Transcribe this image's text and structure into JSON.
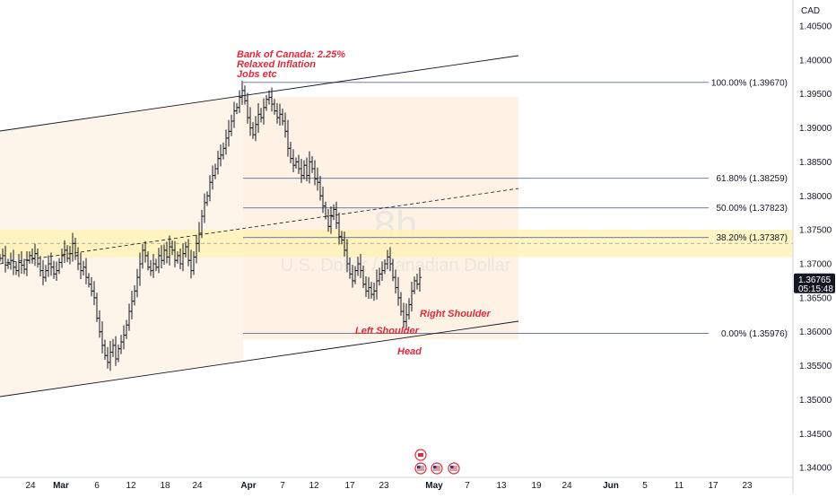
{
  "chart_data": {
    "type": "candlestick",
    "currency": "CAD",
    "watermark_title": "8h",
    "watermark_subtitle": "U.S. Dollar / Canadian Dollar",
    "y_ticks": [
      "1.40500",
      "1.40000",
      "1.39500",
      "1.39000",
      "1.38500",
      "1.38000",
      "1.37500",
      "1.37000",
      "1.36500",
      "1.36000",
      "1.35500",
      "1.35000",
      "1.34500",
      "1.34000"
    ],
    "x_ticks": [
      "24",
      "Mar",
      "6",
      "12",
      "18",
      "24",
      "Apr",
      "7",
      "12",
      "17",
      "23",
      "May",
      "7",
      "13",
      "19",
      "24",
      "Jun",
      "5",
      "11",
      "17",
      "23"
    ],
    "bold_x_ticks": [
      "Mar",
      "Apr",
      "May",
      "Jun"
    ],
    "ylim": [
      1.3395,
      1.4075
    ],
    "last_price": "1.36765",
    "countdown": "05:15:48",
    "fib_levels": [
      {
        "label": "100.00% (1.39670)",
        "value": 1.3967
      },
      {
        "label": "61.80% (1.38259)",
        "value": 1.38259
      },
      {
        "label": "50.00% (1.37823)",
        "value": 1.37823
      },
      {
        "label": "38.20% (1.37387)",
        "value": 1.37387
      },
      {
        "label": "0.00% (1.35976)",
        "value": 1.35976
      }
    ],
    "support_zone": {
      "top": 1.375,
      "bottom": 1.371
    },
    "annotations": [
      {
        "name": "bank-of-canada-note",
        "lines": [
          "Bank of Canada: 2.25%",
          "Relaxed Inflation",
          "Jobs etc"
        ]
      },
      {
        "name": "left-shoulder-label",
        "lines": [
          "Left Shoulder"
        ]
      },
      {
        "name": "right-shoulder-label",
        "lines": [
          "Right Shoulder"
        ]
      },
      {
        "name": "head-label",
        "lines": [
          "Head"
        ]
      }
    ],
    "price_path": [
      [
        0,
        1.3708
      ],
      [
        3,
        1.3712
      ],
      [
        6,
        1.3698
      ],
      [
        9,
        1.37
      ],
      [
        12,
        1.3705
      ],
      [
        15,
        1.3695
      ],
      [
        18,
        1.369
      ],
      [
        21,
        1.3702
      ],
      [
        24,
        1.3698
      ],
      [
        27,
        1.3692
      ],
      [
        30,
        1.3705
      ],
      [
        33,
        1.3712
      ],
      [
        36,
        1.3708
      ],
      [
        39,
        1.3715
      ],
      [
        42,
        1.37
      ],
      [
        45,
        1.369
      ],
      [
        48,
        1.368
      ],
      [
        51,
        1.369
      ],
      [
        54,
        1.37
      ],
      [
        57,
        1.3695
      ],
      [
        60,
        1.3685
      ],
      [
        63,
        1.369
      ],
      [
        66,
        1.3702
      ],
      [
        69,
        1.3712
      ],
      [
        72,
        1.372
      ],
      [
        75,
        1.3708
      ],
      [
        78,
        1.3715
      ],
      [
        81,
        1.373
      ],
      [
        84,
        1.3712
      ],
      [
        87,
        1.37
      ],
      [
        90,
        1.369
      ],
      [
        93,
        1.3695
      ],
      [
        96,
        1.368
      ],
      [
        99,
        1.367
      ],
      [
        102,
        1.366
      ],
      [
        105,
        1.365
      ],
      [
        108,
        1.362
      ],
      [
        111,
        1.36
      ],
      [
        114,
        1.358
      ],
      [
        117,
        1.3565
      ],
      [
        120,
        1.3555
      ],
      [
        123,
        1.357
      ],
      [
        126,
        1.358
      ],
      [
        129,
        1.356
      ],
      [
        132,
        1.3575
      ],
      [
        135,
        1.3585
      ],
      [
        138,
        1.3595
      ],
      [
        141,
        1.361
      ],
      [
        144,
        1.363
      ],
      [
        147,
        1.3645
      ],
      [
        150,
        1.366
      ],
      [
        153,
        1.368
      ],
      [
        156,
        1.37
      ],
      [
        159,
        1.372
      ],
      [
        162,
        1.3712
      ],
      [
        165,
        1.3695
      ],
      [
        168,
        1.369
      ],
      [
        171,
        1.37
      ],
      [
        174,
        1.3695
      ],
      [
        177,
        1.3712
      ],
      [
        180,
        1.3705
      ],
      [
        183,
        1.372
      ],
      [
        186,
        1.371
      ],
      [
        189,
        1.3725
      ],
      [
        192,
        1.372
      ],
      [
        195,
        1.3705
      ],
      [
        198,
        1.3712
      ],
      [
        201,
        1.37
      ],
      [
        204,
        1.3715
      ],
      [
        207,
        1.3725
      ],
      [
        210,
        1.3705
      ],
      [
        213,
        1.369
      ],
      [
        216,
        1.371
      ],
      [
        219,
        1.373
      ],
      [
        222,
        1.3745
      ],
      [
        225,
        1.377
      ],
      [
        228,
        1.379
      ],
      [
        231,
        1.38
      ],
      [
        234,
        1.382
      ],
      [
        237,
        1.383
      ],
      [
        240,
        1.384
      ],
      [
        243,
        1.3855
      ],
      [
        246,
        1.386
      ],
      [
        249,
        1.387
      ],
      [
        252,
        1.3885
      ],
      [
        255,
        1.3895
      ],
      [
        258,
        1.391
      ],
      [
        261,
        1.3925
      ],
      [
        264,
        1.393
      ],
      [
        267,
        1.3945
      ],
      [
        270,
        1.3955
      ],
      [
        273,
        1.394
      ],
      [
        276,
        1.3915
      ],
      [
        279,
        1.39
      ],
      [
        282,
        1.389
      ],
      [
        285,
        1.3905
      ],
      [
        288,
        1.392
      ],
      [
        291,
        1.3915
      ],
      [
        294,
        1.393
      ],
      [
        297,
        1.3942
      ],
      [
        300,
        1.3945
      ],
      [
        303,
        1.3935
      ],
      [
        306,
        1.3925
      ],
      [
        309,
        1.3915
      ],
      [
        312,
        1.392
      ],
      [
        315,
        1.391
      ],
      [
        318,
        1.3895
      ],
      [
        321,
        1.387
      ],
      [
        324,
        1.3855
      ],
      [
        327,
        1.3845
      ],
      [
        330,
        1.385
      ],
      [
        333,
        1.384
      ],
      [
        336,
        1.383
      ],
      [
        339,
        1.3845
      ],
      [
        342,
        1.383
      ],
      [
        345,
        1.385
      ],
      [
        348,
        1.384
      ],
      [
        351,
        1.3825
      ],
      [
        354,
        1.382
      ],
      [
        357,
        1.38
      ],
      [
        360,
        1.3785
      ],
      [
        363,
        1.377
      ],
      [
        366,
        1.3755
      ],
      [
        369,
        1.377
      ],
      [
        372,
        1.378
      ],
      [
        375,
        1.376
      ],
      [
        378,
        1.374
      ],
      [
        381,
        1.3735
      ],
      [
        384,
        1.372
      ],
      [
        387,
        1.37
      ],
      [
        390,
        1.3685
      ],
      [
        393,
        1.3675
      ],
      [
        396,
        1.369
      ],
      [
        399,
        1.37
      ],
      [
        402,
        1.369
      ],
      [
        405,
        1.367
      ],
      [
        408,
        1.366
      ],
      [
        411,
        1.3665
      ],
      [
        414,
        1.3655
      ],
      [
        417,
        1.366
      ],
      [
        420,
        1.3675
      ],
      [
        423,
        1.3685
      ],
      [
        426,
        1.369
      ],
      [
        429,
        1.37
      ],
      [
        432,
        1.371
      ],
      [
        435,
        1.37
      ],
      [
        438,
        1.368
      ],
      [
        441,
        1.3665
      ],
      [
        444,
        1.365
      ],
      [
        447,
        1.363
      ],
      [
        450,
        1.3615
      ],
      [
        453,
        1.3625
      ],
      [
        456,
        1.364
      ],
      [
        459,
        1.366
      ],
      [
        462,
        1.3675
      ],
      [
        465,
        1.367
      ],
      [
        468,
        1.368
      ]
    ]
  }
}
